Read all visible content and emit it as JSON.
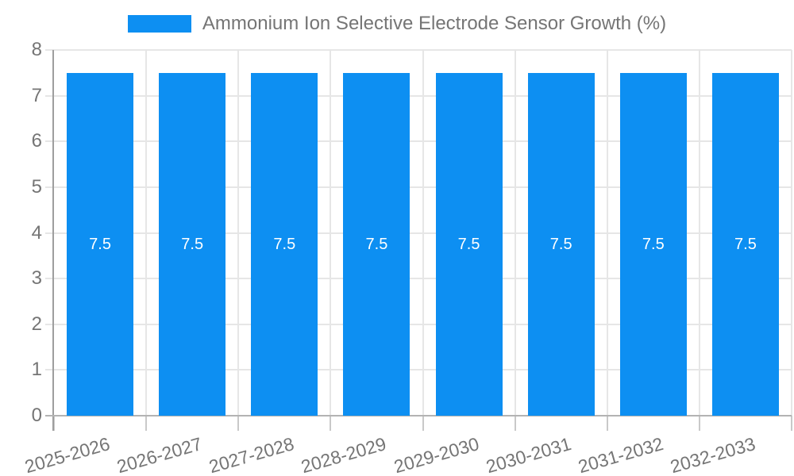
{
  "chart_data": {
    "type": "bar",
    "title": "",
    "xlabel": "",
    "ylabel": "",
    "categories": [
      "2025-2026",
      "2026-2027",
      "2027-2028",
      "2028-2029",
      "2029-2030",
      "2030-2031",
      "2031-2032",
      "2032-2033"
    ],
    "series": [
      {
        "name": "Ammonium Ion Selective Electrode Sensor Growth (%)",
        "values": [
          7.5,
          7.5,
          7.5,
          7.5,
          7.5,
          7.5,
          7.5,
          7.5
        ]
      }
    ],
    "bar_value_labels": [
      "7.5",
      "7.5",
      "7.5",
      "7.5",
      "7.5",
      "7.5",
      "7.5",
      "7.5"
    ],
    "ylim": [
      0,
      8
    ],
    "yticks": [
      0,
      1,
      2,
      3,
      4,
      5,
      6,
      7,
      8
    ],
    "grid": true,
    "legend_position": "top",
    "colors": {
      "bar": "#0d8ff2",
      "bar_label": "#ffffff",
      "tick_label": "#757575",
      "grid": "#e6e6e6",
      "axis": "#9e9e9e"
    }
  }
}
